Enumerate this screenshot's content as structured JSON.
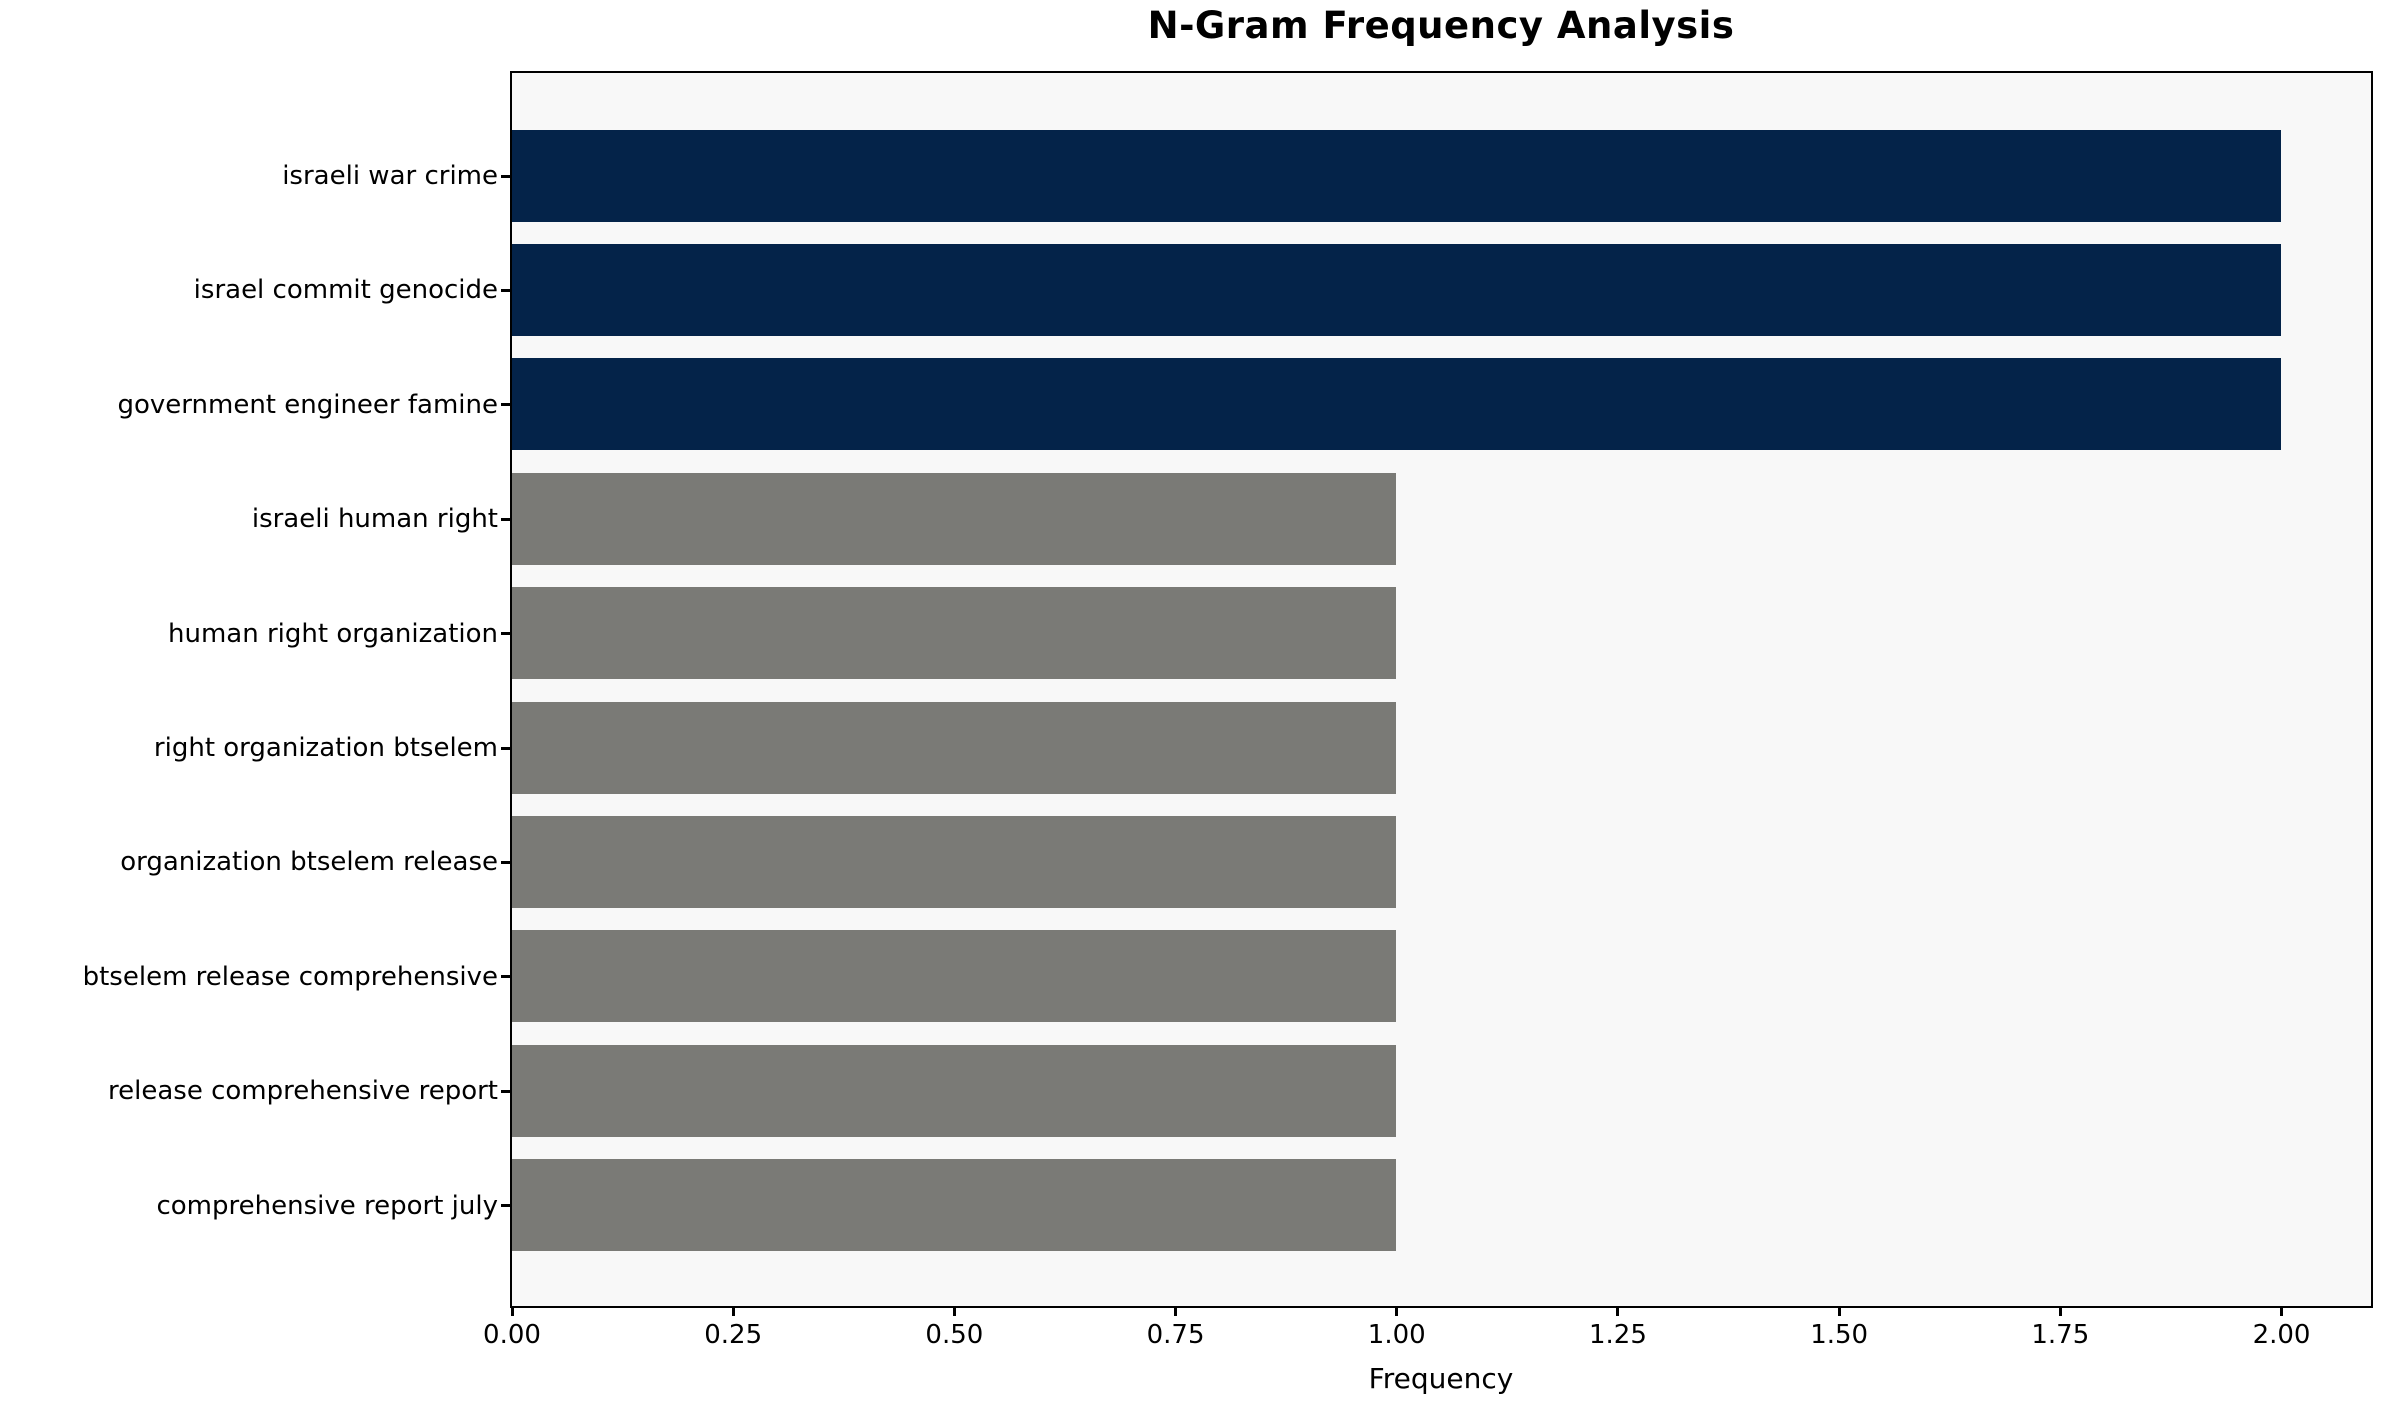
{
  "chart_data": {
    "type": "bar",
    "orientation": "horizontal",
    "title": "N-Gram Frequency Analysis",
    "xlabel": "Frequency",
    "ylabel": "",
    "categories": [
      "israeli war crime",
      "israel commit genocide",
      "government engineer famine",
      "israeli human right",
      "human right organization",
      "right organization btselem",
      "organization btselem release",
      "btselem release comprehensive",
      "release comprehensive report",
      "comprehensive report july"
    ],
    "values": [
      2,
      2,
      2,
      1,
      1,
      1,
      1,
      1,
      1,
      1
    ],
    "xlim": [
      0,
      2.1
    ],
    "xticks": [
      0.0,
      0.25,
      0.5,
      0.75,
      1.0,
      1.25,
      1.5,
      1.75,
      2.0
    ],
    "xtick_labels": [
      "0.00",
      "0.25",
      "0.50",
      "0.75",
      "1.00",
      "1.25",
      "1.50",
      "1.75",
      "2.00"
    ],
    "grid": false,
    "legend": "none",
    "colors": {
      "bar_highlight": "#042349",
      "bar_default": "#7a7a76",
      "plot_background": "#f8f8f8",
      "figure_background": "#ffffff",
      "axis": "#000000",
      "text": "#000000"
    }
  }
}
